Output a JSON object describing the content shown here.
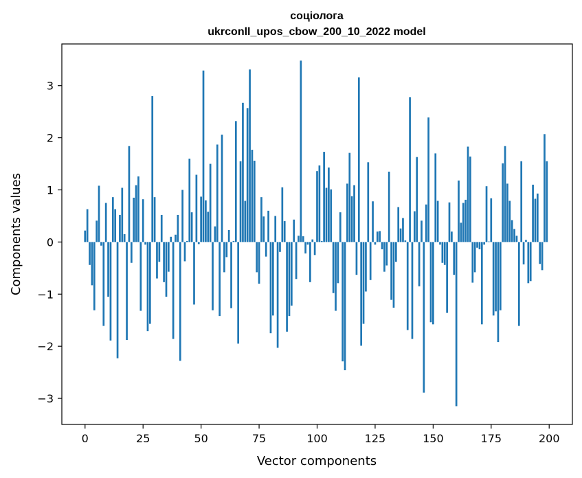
{
  "chart_data": {
    "type": "bar",
    "title": "соціолога",
    "subtitle": "ukrconll_upos_cbow_200_10_2022 model",
    "xlabel": "Vector components",
    "ylabel": "Components values",
    "xlim": [
      -10,
      210
    ],
    "ylim": [
      -3.5,
      3.8
    ],
    "xticks": [
      0,
      25,
      50,
      75,
      100,
      125,
      150,
      175,
      200
    ],
    "yticks": [
      -3,
      -2,
      -1,
      0,
      1,
      2,
      3
    ],
    "bar_color": "#1f77b4",
    "grid": false,
    "values": [
      0.22,
      0.63,
      -0.44,
      -0.83,
      -1.31,
      0.41,
      1.08,
      -0.07,
      -1.61,
      0.75,
      -1.05,
      -1.89,
      0.86,
      0.63,
      -2.23,
      0.52,
      1.04,
      0.15,
      -1.88,
      1.84,
      -0.4,
      0.85,
      1.09,
      1.26,
      -1.32,
      0.82,
      -0.05,
      -1.71,
      -1.57,
      2.8,
      0.86,
      -0.7,
      -0.38,
      0.52,
      -0.77,
      -1.05,
      -0.57,
      0.1,
      -1.86,
      0.14,
      0.52,
      -2.28,
      1.0,
      -0.37,
      0.02,
      1.6,
      0.57,
      -1.2,
      1.29,
      -0.04,
      0.87,
      3.29,
      0.8,
      0.58,
      1.5,
      -1.31,
      0.3,
      1.87,
      -1.42,
      2.06,
      -0.58,
      -0.29,
      0.23,
      -1.27,
      0.02,
      2.32,
      -1.95,
      1.55,
      2.67,
      0.79,
      2.57,
      3.31,
      1.77,
      1.56,
      -0.58,
      -0.8,
      0.86,
      0.49,
      -0.28,
      0.6,
      -1.75,
      -1.41,
      0.5,
      -2.03,
      -0.19,
      1.05,
      0.4,
      -1.72,
      -1.42,
      -1.22,
      0.43,
      -0.71,
      0.12,
      3.48,
      0.11,
      -0.22,
      -0.05,
      -0.77,
      0.05,
      -0.25,
      1.36,
      1.47,
      0.02,
      1.73,
      1.04,
      1.43,
      1.01,
      -0.98,
      -1.32,
      -0.79,
      0.57,
      -2.29,
      -2.46,
      1.12,
      1.71,
      0.88,
      1.09,
      -0.63,
      3.16,
      -1.99,
      -1.57,
      -0.95,
      1.53,
      -0.73,
      0.78,
      -0.05,
      0.2,
      0.21,
      -0.14,
      -0.57,
      -0.45,
      1.35,
      -1.11,
      -1.26,
      -0.38,
      0.67,
      0.26,
      0.46,
      0.03,
      -1.69,
      2.78,
      -1.86,
      0.59,
      1.63,
      -0.85,
      0.41,
      -2.89,
      0.72,
      2.39,
      -1.54,
      -1.58,
      1.7,
      0.79,
      -0.05,
      -0.4,
      -0.44,
      -1.36,
      0.76,
      0.2,
      -0.63,
      -3.15,
      1.18,
      0.37,
      0.75,
      0.81,
      1.83,
      1.64,
      -0.78,
      -0.58,
      -0.11,
      -0.14,
      -1.58,
      -0.05,
      1.07,
      0.01,
      0.84,
      -1.41,
      -1.33,
      -1.92,
      -1.31,
      1.51,
      1.84,
      1.12,
      0.79,
      0.42,
      0.25,
      0.12,
      -1.61,
      1.55,
      -0.43,
      0.04,
      -0.79,
      -0.75,
      1.1,
      0.83,
      0.93,
      -0.42,
      -0.54,
      2.07,
      1.55
    ]
  }
}
